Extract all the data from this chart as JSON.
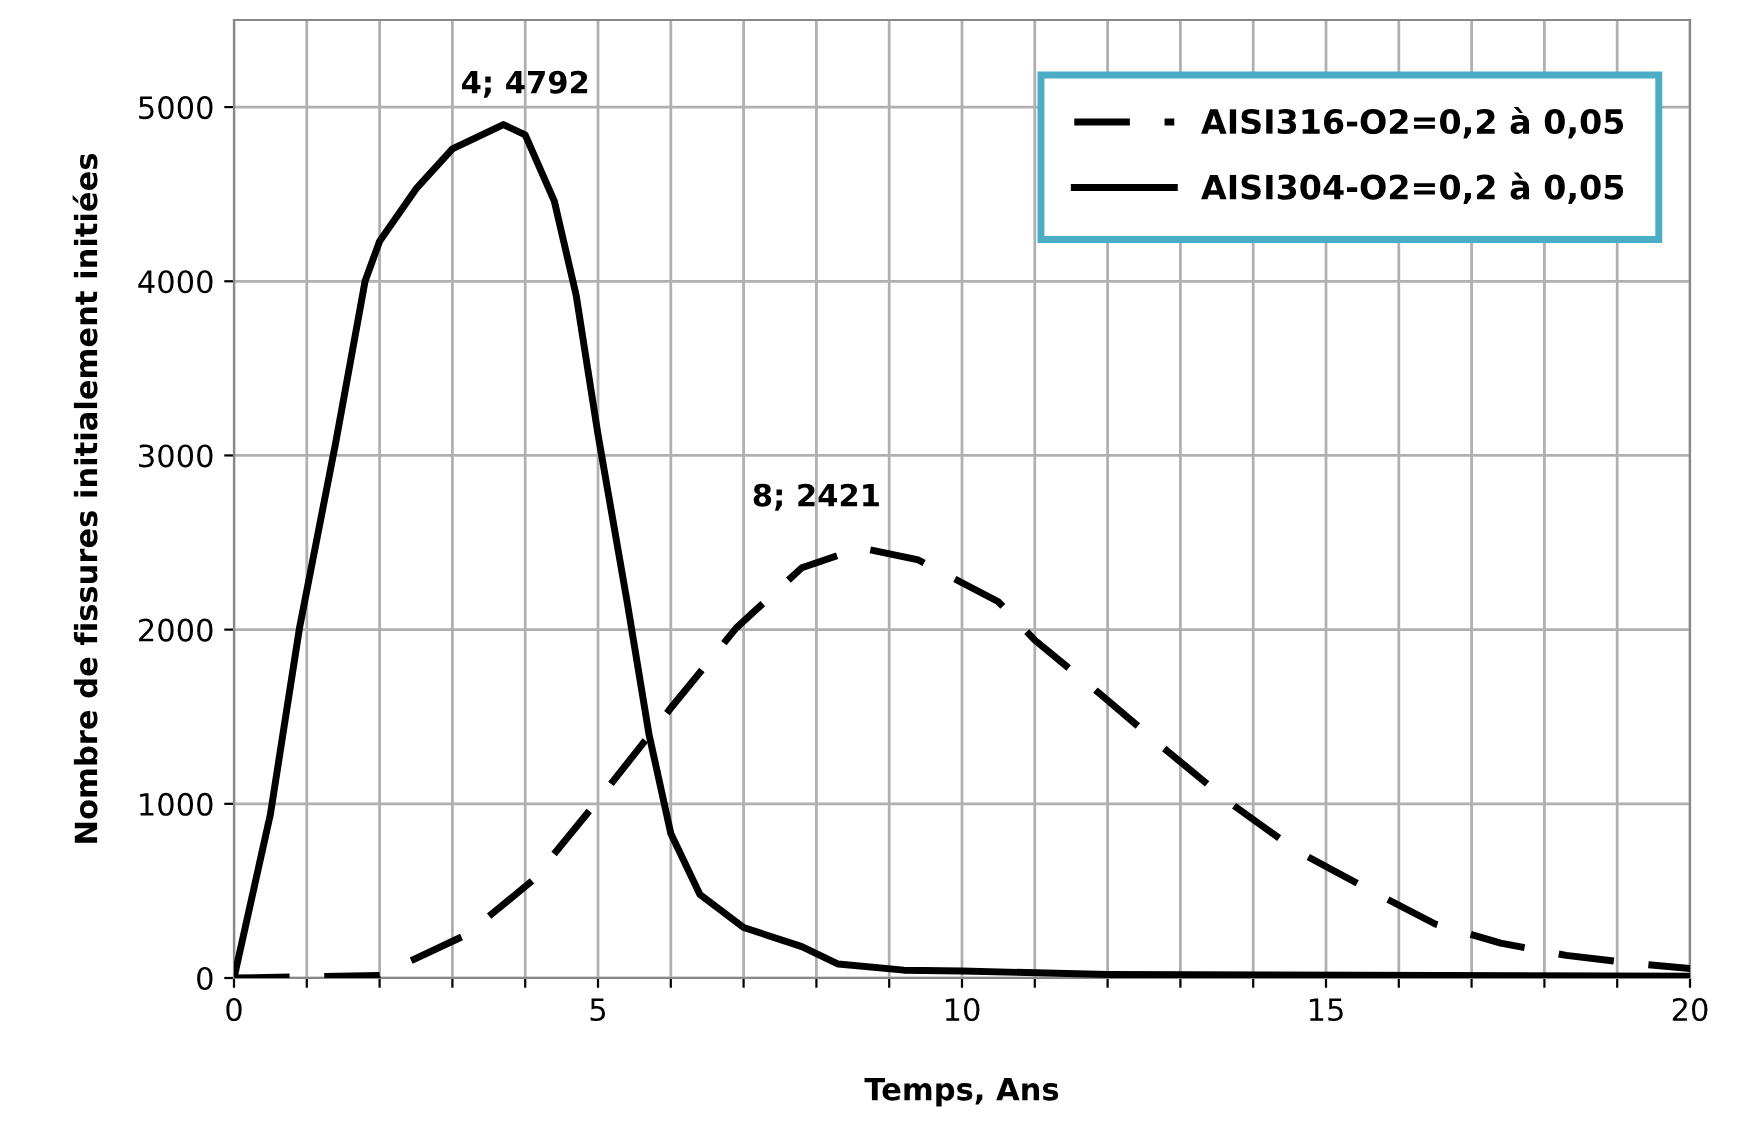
{
  "chart_data": {
    "type": "line",
    "xlabel": "Temps, Ans",
    "ylabel": "Nombre de fissures initialement initiées",
    "xlim": [
      0,
      20
    ],
    "ylim": [
      0,
      5500
    ],
    "xticks": [
      0,
      {
        "value": 1,
        "label": null
      },
      {
        "value": 2,
        "label": null
      },
      {
        "value": 3,
        "label": null
      },
      {
        "value": 4,
        "label": null
      },
      5,
      {
        "value": 6,
        "label": null
      },
      {
        "value": 7,
        "label": null
      },
      {
        "value": 8,
        "label": null
      },
      {
        "value": 9,
        "label": null
      },
      10,
      {
        "value": 11,
        "label": null
      },
      {
        "value": 12,
        "label": null
      },
      {
        "value": 13,
        "label": null
      },
      {
        "value": 14,
        "label": null
      },
      15,
      {
        "value": 16,
        "label": null
      },
      {
        "value": 17,
        "label": null
      },
      {
        "value": 18,
        "label": null
      },
      {
        "value": 19,
        "label": null
      },
      20
    ],
    "yticks": [
      0,
      1000,
      2000,
      3000,
      4000,
      5000
    ],
    "grid": true,
    "legend": "top right",
    "marker": "none",
    "series": [
      {
        "name": "AISI316-O2=0,2 à 0,05",
        "color": "#000000",
        "line_style": "dashed",
        "x": [
          0,
          2,
          3.2,
          4.1,
          5,
          6,
          6.9,
          7.8,
          8.6,
          9.4,
          10.5,
          11,
          11.9,
          12.8,
          13.7,
          14.6,
          15.6,
          16.5,
          17.4,
          18.3,
          19.2,
          20
        ],
        "values": [
          0,
          15,
          250,
          560,
          1020,
          1550,
          2010,
          2355,
          2470,
          2400,
          2160,
          1940,
          1630,
          1310,
          1000,
          730,
          505,
          310,
          200,
          130,
          85,
          55
        ]
      },
      {
        "name": "AISI304-O2=0,2 à 0,05",
        "color": "#000000",
        "line_style": "solid",
        "x": [
          0,
          0.5,
          0.9,
          1.4,
          1.8,
          2,
          2.5,
          3,
          3.7,
          4,
          4.4,
          4.7,
          5,
          5.4,
          5.7,
          6,
          6.4,
          7,
          7.8,
          8.3,
          9.2,
          10,
          12,
          20
        ],
        "values": [
          0,
          940,
          2010,
          3080,
          4000,
          4230,
          4530,
          4760,
          4900,
          4840,
          4460,
          3920,
          3120,
          2160,
          1400,
          830,
          480,
          290,
          180,
          80,
          45,
          40,
          20,
          10
        ]
      }
    ],
    "annotations": [
      {
        "text": "4; 4792",
        "x": 4,
        "y": 4792
      },
      {
        "text": "8; 2421",
        "x": 8,
        "y": 2421
      }
    ]
  }
}
